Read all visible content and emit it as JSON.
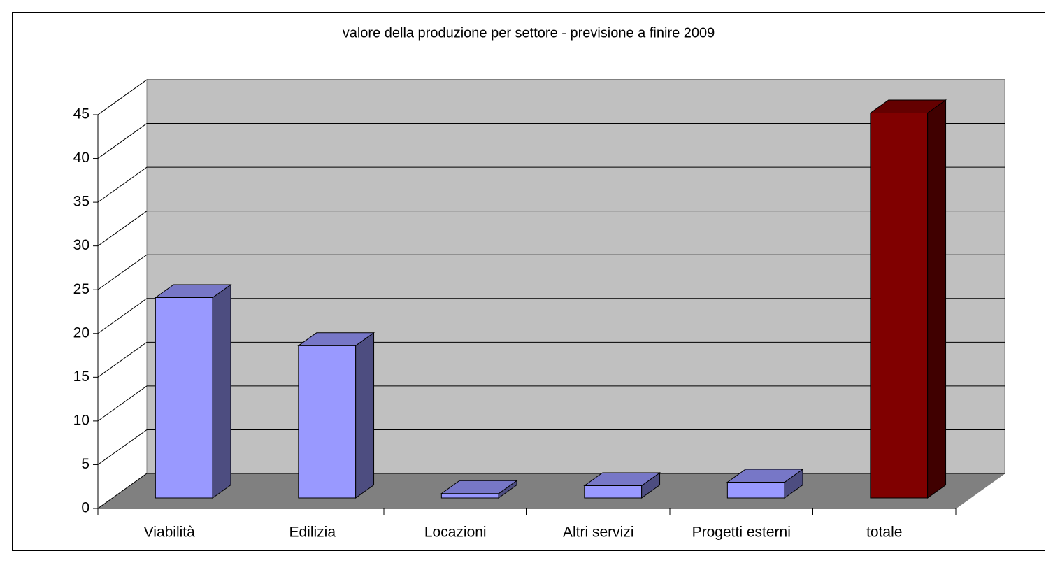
{
  "chart_data": {
    "type": "bar3d",
    "title": "valore della produzione per settore - previsione a finire 2009",
    "categories": [
      "Viabilità",
      "Edilizia",
      "Locazioni",
      "Altri servizi",
      "Progetti esterni",
      "totale"
    ],
    "values": [
      22.9,
      17.4,
      0.5,
      1.4,
      1.8,
      44.0
    ],
    "colors": [
      "#9999ff",
      "#9999ff",
      "#9999ff",
      "#9999ff",
      "#9999ff",
      "#800000"
    ],
    "ylim": [
      0,
      45
    ],
    "yticks": [
      0,
      5,
      10,
      15,
      20,
      25,
      30,
      35,
      40,
      45
    ],
    "grid": true
  }
}
